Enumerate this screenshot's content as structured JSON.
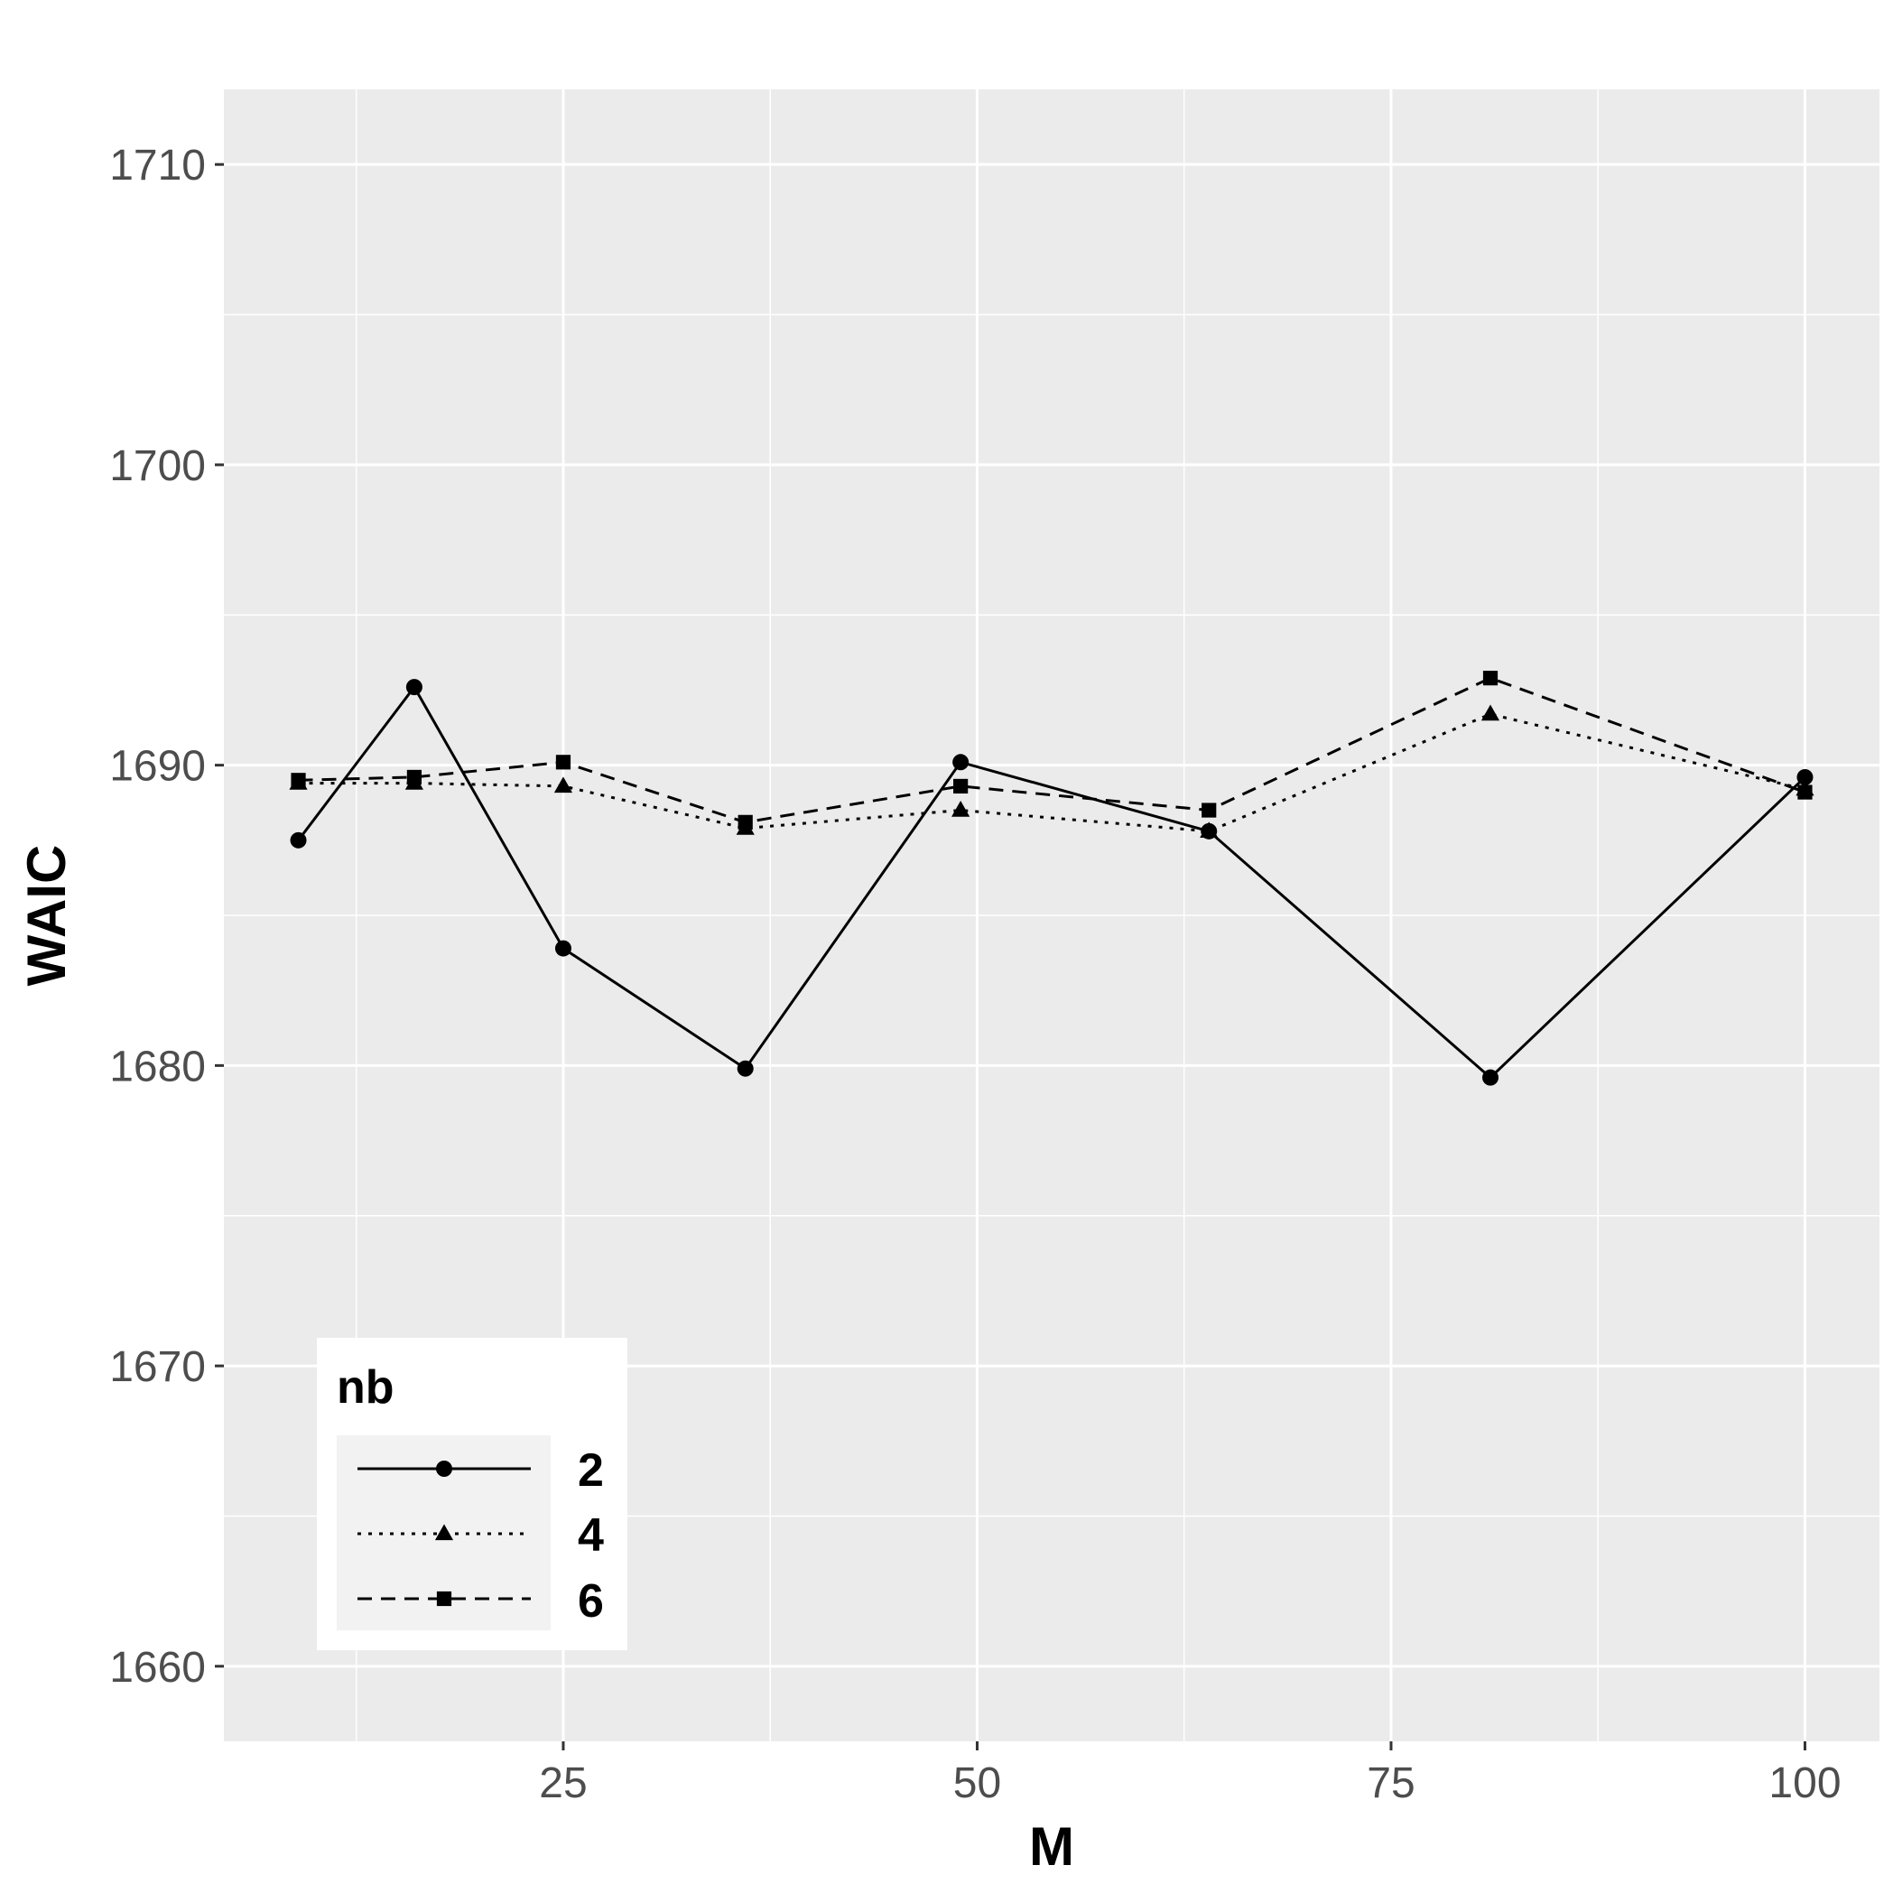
{
  "chart_data": {
    "type": "line",
    "xlabel": "M",
    "ylabel": "WAIC",
    "xlim": [
      4.5,
      104.5
    ],
    "ylim": [
      1657.5,
      1712.5
    ],
    "x_ticks": [
      25,
      50,
      75,
      100
    ],
    "x_tick_labels": [
      "25",
      "50",
      "75",
      "100"
    ],
    "y_ticks": [
      1660,
      1670,
      1680,
      1690,
      1700,
      1710
    ],
    "y_tick_labels": [
      "1660",
      "1670",
      "1680",
      "1690",
      "1700",
      "1710"
    ],
    "grid": true,
    "legend": {
      "title": "nb",
      "placement": "bottom-left"
    },
    "x": [
      9,
      16,
      25,
      36,
      49,
      64,
      81,
      100
    ],
    "series": [
      {
        "name": "2",
        "marker": "circle",
        "dash": "solid",
        "values": [
          1687.5,
          1692.6,
          1683.9,
          1679.9,
          1690.1,
          1687.8,
          1679.6,
          1689.6
        ]
      },
      {
        "name": "4",
        "marker": "triangle",
        "dash": "dotted",
        "values": [
          1689.4,
          1689.4,
          1689.3,
          1687.9,
          1688.5,
          1687.8,
          1691.7,
          1689.2
        ]
      },
      {
        "name": "6",
        "marker": "square",
        "dash": "dashed",
        "values": [
          1689.5,
          1689.6,
          1690.1,
          1688.1,
          1689.3,
          1688.5,
          1692.9,
          1689.1
        ]
      }
    ]
  }
}
